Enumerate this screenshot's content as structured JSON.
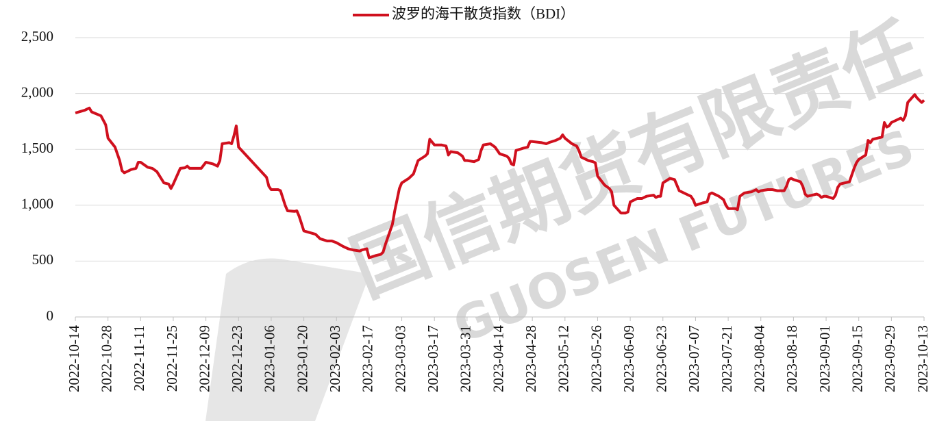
{
  "chart_data": {
    "type": "line",
    "watermark": [
      "国信期货有限责任",
      "GUOSEN FUTURES"
    ],
    "x": [
      "2022-10-14",
      "2022-10-18",
      "2022-10-20",
      "2022-10-21",
      "2022-10-25",
      "2022-10-27",
      "2022-10-28",
      "2022-10-31",
      "2022-11-02",
      "2022-11-03",
      "2022-11-04",
      "2022-11-07",
      "2022-11-09",
      "2022-11-10",
      "2022-11-11",
      "2022-11-14",
      "2022-11-16",
      "2022-11-18",
      "2022-11-21",
      "2022-11-23",
      "2022-11-24",
      "2022-11-25",
      "2022-11-28",
      "2022-11-30",
      "2022-12-01",
      "2022-12-02",
      "2022-12-05",
      "2022-12-07",
      "2022-12-09",
      "2022-12-12",
      "2022-12-14",
      "2022-12-15",
      "2022-12-16",
      "2022-12-19",
      "2022-12-20",
      "2022-12-21",
      "2022-12-22",
      "2022-12-23",
      "2023-01-04",
      "2023-01-05",
      "2023-01-06",
      "2023-01-09",
      "2023-01-10",
      "2023-01-12",
      "2023-01-13",
      "2023-01-16",
      "2023-01-17",
      "2023-01-18",
      "2023-01-20",
      "2023-01-25",
      "2023-01-27",
      "2023-01-30",
      "2023-02-01",
      "2023-02-03",
      "2023-02-06",
      "2023-02-08",
      "2023-02-10",
      "2023-02-13",
      "2023-02-14",
      "2023-02-16",
      "2023-02-17",
      "2023-02-20",
      "2023-02-22",
      "2023-02-23",
      "2023-02-24",
      "2023-02-27",
      "2023-02-28",
      "2023-03-01",
      "2023-03-02",
      "2023-03-03",
      "2023-03-06",
      "2023-03-08",
      "2023-03-10",
      "2023-03-13",
      "2023-03-14",
      "2023-03-15",
      "2023-03-17",
      "2023-03-20",
      "2023-03-22",
      "2023-03-23",
      "2023-03-24",
      "2023-03-27",
      "2023-03-29",
      "2023-03-30",
      "2023-03-31",
      "2023-04-03",
      "2023-04-05",
      "2023-04-06",
      "2023-04-07",
      "2023-04-10",
      "2023-04-12",
      "2023-04-14",
      "2023-04-17",
      "2023-04-18",
      "2023-04-19",
      "2023-04-20",
      "2023-04-21",
      "2023-04-24",
      "2023-04-26",
      "2023-04-27",
      "2023-04-28",
      "2023-05-02",
      "2023-05-04",
      "2023-05-05",
      "2023-05-08",
      "2023-05-10",
      "2023-05-11",
      "2023-05-12",
      "2023-05-15",
      "2023-05-17",
      "2023-05-18",
      "2023-05-19",
      "2023-05-22",
      "2023-05-24",
      "2023-05-25",
      "2023-05-26",
      "2023-05-29",
      "2023-05-31",
      "2023-06-01",
      "2023-06-02",
      "2023-06-05",
      "2023-06-07",
      "2023-06-08",
      "2023-06-09",
      "2023-06-12",
      "2023-06-14",
      "2023-06-16",
      "2023-06-19",
      "2023-06-20",
      "2023-06-21",
      "2023-06-22",
      "2023-06-23",
      "2023-06-26",
      "2023-06-28",
      "2023-06-30",
      "2023-07-03",
      "2023-07-05",
      "2023-07-06",
      "2023-07-07",
      "2023-07-10",
      "2023-07-12",
      "2023-07-13",
      "2023-07-14",
      "2023-07-17",
      "2023-07-19",
      "2023-07-20",
      "2023-07-21",
      "2023-07-24",
      "2023-07-25",
      "2023-07-26",
      "2023-07-28",
      "2023-07-31",
      "2023-08-02",
      "2023-08-03",
      "2023-08-04",
      "2023-08-07",
      "2023-08-09",
      "2023-08-11",
      "2023-08-14",
      "2023-08-15",
      "2023-08-16",
      "2023-08-17",
      "2023-08-18",
      "2023-08-21",
      "2023-08-22",
      "2023-08-23",
      "2023-08-24",
      "2023-08-28",
      "2023-08-29",
      "2023-08-30",
      "2023-08-31",
      "2023-09-01",
      "2023-09-04",
      "2023-09-05",
      "2023-09-06",
      "2023-09-07",
      "2023-09-11",
      "2023-09-12",
      "2023-09-13",
      "2023-09-14",
      "2023-09-15",
      "2023-09-18",
      "2023-09-19",
      "2023-09-20",
      "2023-09-21",
      "2023-09-25",
      "2023-09-26",
      "2023-09-27",
      "2023-09-28",
      "2023-09-29",
      "2023-10-03",
      "2023-10-04",
      "2023-10-05",
      "2023-10-06",
      "2023-10-09",
      "2023-10-10",
      "2023-10-11",
      "2023-10-12",
      "2023-10-13"
    ],
    "series": [
      {
        "name": "波罗的海干散货指数（BDI）",
        "color": "#d0101e",
        "values": [
          1826,
          1850,
          1870,
          1835,
          1800,
          1720,
          1600,
          1520,
          1400,
          1310,
          1290,
          1320,
          1330,
          1385,
          1385,
          1340,
          1330,
          1300,
          1200,
          1190,
          1150,
          1190,
          1330,
          1335,
          1350,
          1330,
          1330,
          1330,
          1385,
          1370,
          1350,
          1400,
          1550,
          1560,
          1550,
          1620,
          1710,
          1520,
          1250,
          1170,
          1140,
          1140,
          1130,
          1000,
          950,
          945,
          950,
          900,
          770,
          740,
          700,
          680,
          680,
          665,
          630,
          610,
          600,
          590,
          600,
          610,
          530,
          550,
          560,
          580,
          650,
          830,
          950,
          1050,
          1150,
          1200,
          1240,
          1280,
          1400,
          1440,
          1460,
          1590,
          1540,
          1540,
          1530,
          1450,
          1480,
          1470,
          1440,
          1400,
          1400,
          1390,
          1410,
          1490,
          1540,
          1550,
          1520,
          1460,
          1440,
          1420,
          1370,
          1360,
          1490,
          1510,
          1520,
          1570,
          1570,
          1560,
          1550,
          1560,
          1580,
          1600,
          1630,
          1600,
          1550,
          1530,
          1490,
          1430,
          1400,
          1390,
          1380,
          1260,
          1180,
          1150,
          1120,
          1000,
          930,
          930,
          940,
          1030,
          1060,
          1060,
          1080,
          1090,
          1070,
          1080,
          1080,
          1200,
          1240,
          1230,
          1130,
          1100,
          1080,
          1050,
          1000,
          1020,
          1030,
          1100,
          1110,
          1080,
          1050,
          1000,
          970,
          970,
          960,
          1080,
          1110,
          1120,
          1140,
          1120,
          1130,
          1140,
          1140,
          1130,
          1130,
          1170,
          1230,
          1240,
          1230,
          1210,
          1170,
          1100,
          1080,
          1100,
          1090,
          1070,
          1080,
          1080,
          1060,
          1090,
          1160,
          1190,
          1210,
          1270,
          1330,
          1380,
          1410,
          1450,
          1580,
          1560,
          1590,
          1610,
          1740,
          1700,
          1710,
          1740,
          1780,
          1760,
          1800,
          1920,
          1990,
          1960,
          1940,
          1920,
          1940
        ]
      }
    ],
    "xlim": [
      "2022-10-14",
      "2023-10-13"
    ],
    "xticks": [
      "2022-10-14",
      "2022-10-28",
      "2022-11-11",
      "2022-11-25",
      "2022-12-09",
      "2022-12-23",
      "2023-01-06",
      "2023-01-20",
      "2023-02-03",
      "2023-02-17",
      "2023-03-03",
      "2023-03-17",
      "2023-03-31",
      "2023-04-14",
      "2023-04-28",
      "2023-05-12",
      "2023-05-26",
      "2023-06-09",
      "2023-06-23",
      "2023-07-07",
      "2023-07-21",
      "2023-08-04",
      "2023-08-18",
      "2023-09-01",
      "2023-09-15",
      "2023-09-29",
      "2023-10-13"
    ],
    "ylim": [
      0,
      2500
    ],
    "yticks": [
      0,
      500,
      {
        "value": 1000,
        "label": "1,000"
      },
      {
        "value": 1500,
        "label": "1,500"
      },
      {
        "value": 2000,
        "label": "2,000"
      },
      {
        "value": 2500,
        "label": "2,500"
      }
    ],
    "grid": true,
    "legend": "top"
  }
}
